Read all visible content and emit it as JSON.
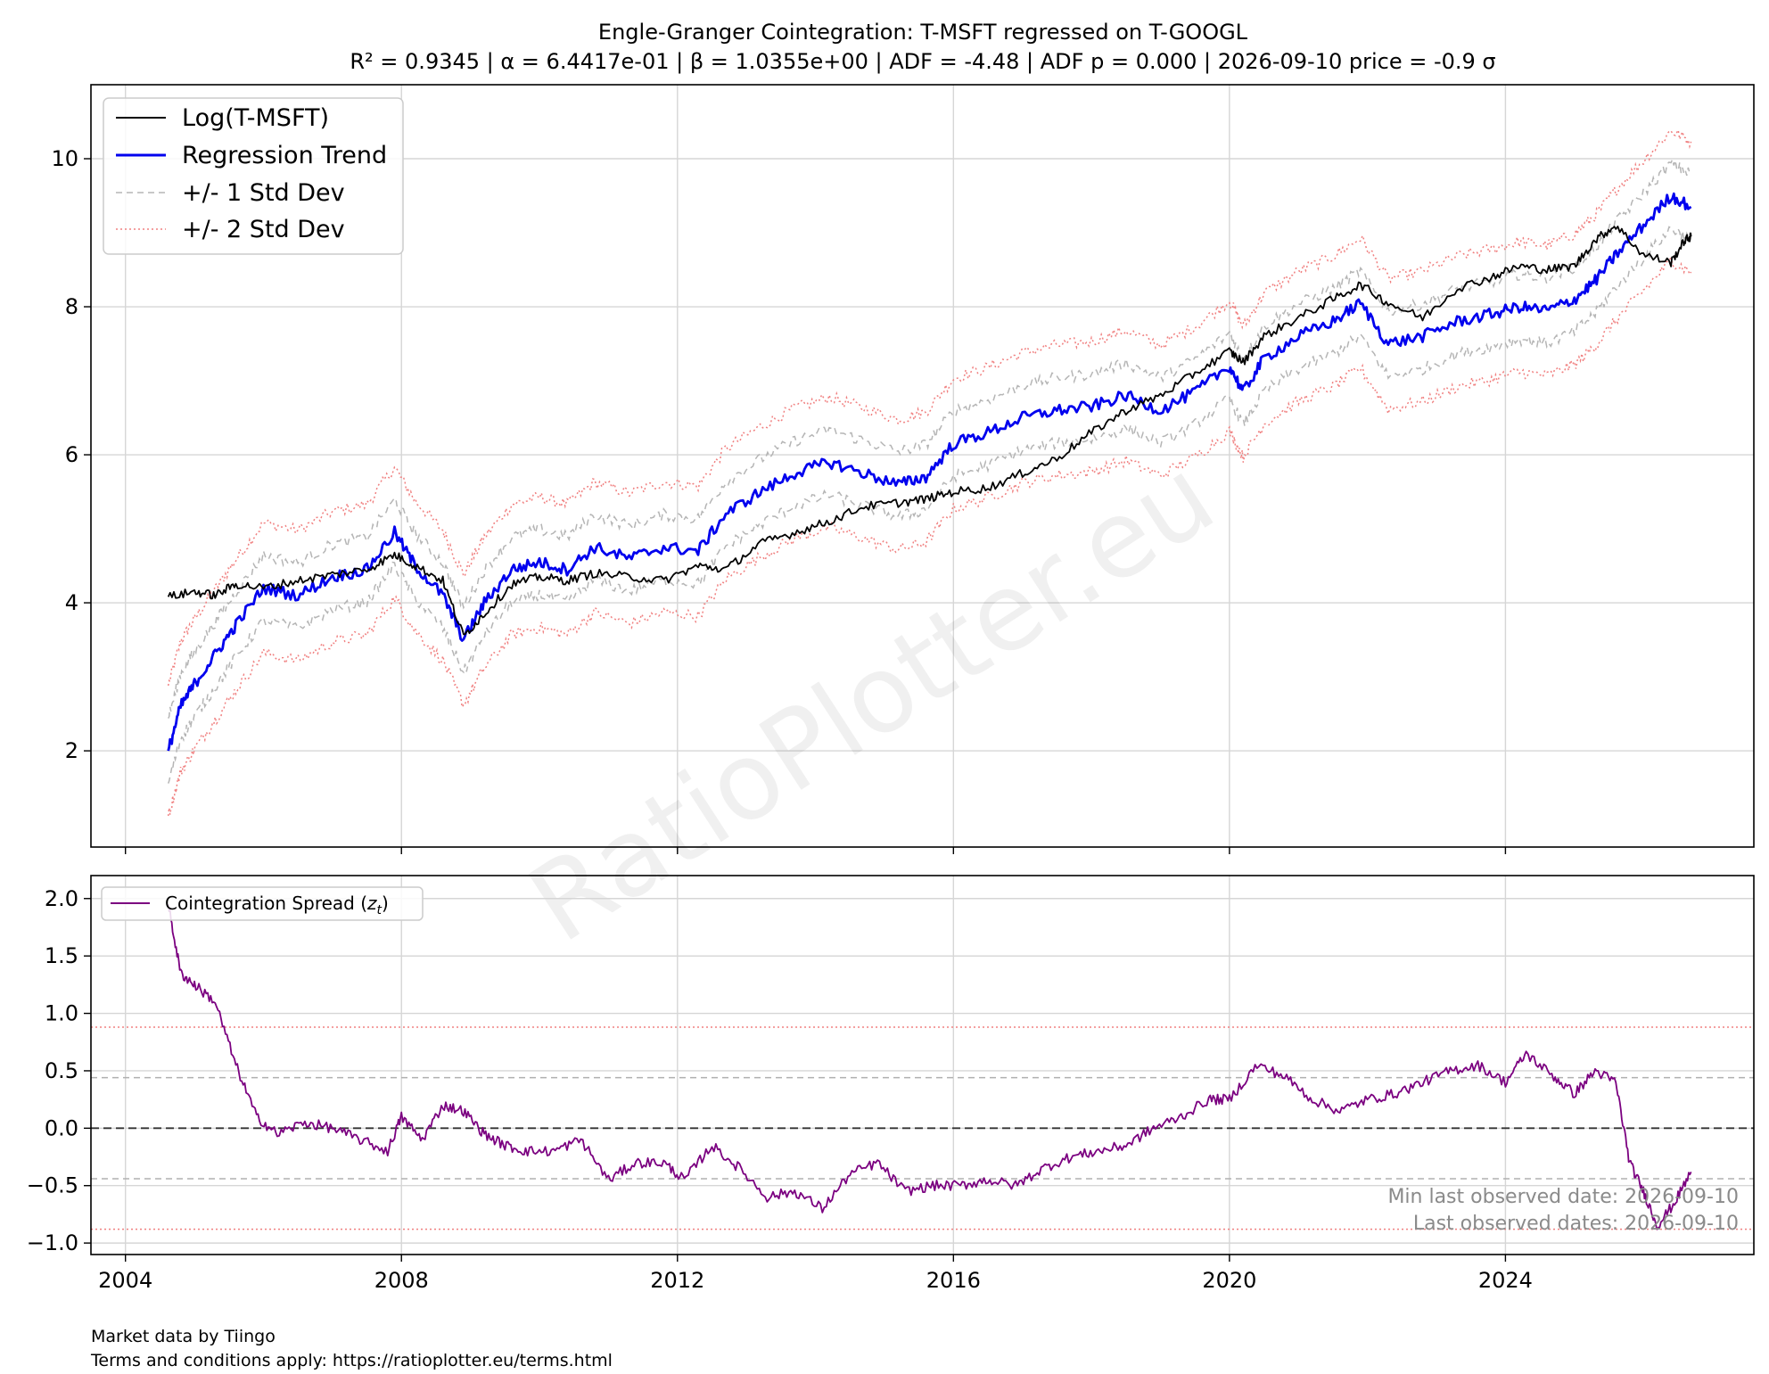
{
  "chart_data": [
    {
      "type": "line",
      "title": "Engle-Granger Cointegration: T-MSFT regressed on T-GOOGL",
      "subtitle": "R² = 0.9345 | α = 6.4417e-01 | β = 1.0355e+00 | ADF = -4.48 | ADF p = 0.000 | 2026-09-10 price = -0.9 σ",
      "xlabel": "",
      "ylabel": "",
      "xlim": [
        2003.5,
        2027.6
      ],
      "ylim": [
        0.7,
        11.0
      ],
      "x_ticks": [
        2004,
        2008,
        2012,
        2016,
        2020,
        2024
      ],
      "y_ticks": [
        2,
        4,
        6,
        8,
        10
      ],
      "y_tick_labels": [
        "2",
        "4",
        "6",
        "8",
        "10"
      ],
      "grid": true,
      "legend_position": "upper-left",
      "legend": [
        "Log(T-MSFT)",
        "Regression Trend",
        "+/- 1 Std Dev",
        "+/- 2 Std Dev"
      ],
      "band_offsets": {
        "one_sd": 0.44,
        "two_sd": 0.88
      },
      "series": [
        {
          "name": "Log(T-MSFT)",
          "color": "#000000",
          "x": [
            2004.62,
            2005.0,
            2005.3,
            2005.6,
            2006.0,
            2006.5,
            2007.0,
            2007.5,
            2007.9,
            2008.2,
            2008.6,
            2008.9,
            2009.2,
            2009.6,
            2010.0,
            2010.4,
            2010.8,
            2011.3,
            2011.8,
            2012.3,
            2012.7,
            2013.2,
            2013.7,
            2014.2,
            2014.7,
            2015.2,
            2015.6,
            2016.0,
            2016.5,
            2017.0,
            2017.5,
            2018.0,
            2018.5,
            2019.0,
            2019.5,
            2020.0,
            2020.2,
            2020.5,
            2021.0,
            2021.5,
            2021.9,
            2022.3,
            2022.8,
            2023.3,
            2023.8,
            2024.2,
            2024.6,
            2025.0,
            2025.3,
            2025.6,
            2026.0,
            2026.4,
            2026.6,
            2026.69
          ],
          "values": [
            4.08,
            4.15,
            4.1,
            4.25,
            4.2,
            4.3,
            4.38,
            4.45,
            4.65,
            4.5,
            4.3,
            3.55,
            3.85,
            4.25,
            4.35,
            4.3,
            4.4,
            4.35,
            4.3,
            4.5,
            4.45,
            4.8,
            4.95,
            5.1,
            5.3,
            5.35,
            5.4,
            5.5,
            5.55,
            5.75,
            5.95,
            6.3,
            6.6,
            6.8,
            7.1,
            7.4,
            7.25,
            7.6,
            7.85,
            8.1,
            8.3,
            8.05,
            7.85,
            8.25,
            8.4,
            8.55,
            8.5,
            8.55,
            8.9,
            9.1,
            8.7,
            8.6,
            8.9,
            8.95
          ]
        },
        {
          "name": "Regression Trend",
          "color": "#0000ee",
          "x": [
            2004.62,
            2004.8,
            2005.0,
            2005.3,
            2005.6,
            2006.0,
            2006.5,
            2007.0,
            2007.5,
            2007.9,
            2008.2,
            2008.6,
            2008.9,
            2009.2,
            2009.6,
            2010.0,
            2010.4,
            2010.8,
            2011.3,
            2011.8,
            2012.3,
            2012.7,
            2013.2,
            2013.7,
            2014.2,
            2014.7,
            2015.2,
            2015.6,
            2016.0,
            2016.5,
            2017.0,
            2017.5,
            2018.0,
            2018.5,
            2019.0,
            2019.5,
            2020.0,
            2020.2,
            2020.5,
            2021.0,
            2021.5,
            2021.9,
            2022.3,
            2022.8,
            2023.3,
            2023.8,
            2024.2,
            2024.6,
            2025.0,
            2025.3,
            2025.6,
            2026.0,
            2026.4,
            2026.69
          ],
          "values": [
            2.0,
            2.6,
            2.9,
            3.3,
            3.7,
            4.2,
            4.1,
            4.35,
            4.45,
            4.95,
            4.5,
            4.1,
            3.5,
            4.0,
            4.45,
            4.55,
            4.45,
            4.75,
            4.6,
            4.75,
            4.7,
            5.2,
            5.5,
            5.75,
            5.9,
            5.75,
            5.6,
            5.7,
            6.15,
            6.3,
            6.5,
            6.6,
            6.65,
            6.8,
            6.6,
            6.85,
            7.2,
            6.85,
            7.3,
            7.6,
            7.8,
            8.05,
            7.5,
            7.6,
            7.8,
            7.9,
            8.0,
            7.95,
            8.1,
            8.35,
            8.7,
            9.1,
            9.5,
            9.35
          ]
        }
      ]
    },
    {
      "type": "line",
      "title": "",
      "xlabel": "",
      "ylabel": "",
      "xlim": [
        2003.5,
        2027.6
      ],
      "ylim": [
        -1.1,
        2.2
      ],
      "x_ticks": [
        2004,
        2008,
        2012,
        2016,
        2020,
        2024
      ],
      "x_tick_labels": [
        "2004",
        "2008",
        "2012",
        "2016",
        "2020",
        "2024"
      ],
      "y_ticks": [
        -1.0,
        -0.5,
        0.0,
        0.5,
        1.0,
        1.5,
        2.0
      ],
      "y_tick_labels": [
        "−1.0",
        "−0.5",
        "0.0",
        "0.5",
        "1.0",
        "1.5",
        "2.0"
      ],
      "grid": true,
      "legend_position": "upper-left",
      "legend": [
        "Cointegration Spread (z_t)"
      ],
      "reference_lines": [
        {
          "y": 0.0,
          "style": "dashed",
          "color": "#333333"
        },
        {
          "y": 0.44,
          "style": "dashed",
          "color": "#b0b0b0"
        },
        {
          "y": -0.44,
          "style": "dashed",
          "color": "#b0b0b0"
        },
        {
          "y": 0.88,
          "style": "dotted",
          "color": "#f08080"
        },
        {
          "y": -0.88,
          "style": "dotted",
          "color": "#f08080"
        }
      ],
      "annotations": [
        "Min last observed date: 2026-09-10",
        "Last observed dates: 2026-09-10"
      ],
      "series": [
        {
          "name": "Cointegration Spread (z_t)",
          "color": "#7b0080",
          "x": [
            2004.62,
            2004.8,
            2005.0,
            2005.3,
            2005.6,
            2005.9,
            2006.2,
            2006.6,
            2007.0,
            2007.4,
            2007.8,
            2008.0,
            2008.3,
            2008.6,
            2008.9,
            2009.2,
            2009.5,
            2009.8,
            2010.2,
            2010.6,
            2011.0,
            2011.4,
            2011.8,
            2012.1,
            2012.5,
            2012.9,
            2013.3,
            2013.7,
            2014.1,
            2014.5,
            2014.9,
            2015.3,
            2015.7,
            2016.1,
            2016.5,
            2016.9,
            2017.3,
            2017.7,
            2018.1,
            2018.5,
            2018.9,
            2019.3,
            2019.7,
            2020.0,
            2020.4,
            2020.8,
            2021.2,
            2021.6,
            2022.0,
            2022.4,
            2022.8,
            2023.2,
            2023.6,
            2024.0,
            2024.3,
            2024.7,
            2025.0,
            2025.3,
            2025.6,
            2025.8,
            2026.0,
            2026.2,
            2026.45,
            2026.69
          ],
          "values": [
            1.95,
            1.35,
            1.25,
            1.1,
            0.55,
            0.1,
            -0.05,
            0.05,
            0.0,
            -0.1,
            -0.2,
            0.1,
            -0.1,
            0.2,
            0.15,
            -0.05,
            -0.15,
            -0.2,
            -0.2,
            -0.1,
            -0.45,
            -0.3,
            -0.3,
            -0.45,
            -0.15,
            -0.35,
            -0.6,
            -0.55,
            -0.7,
            -0.4,
            -0.3,
            -0.55,
            -0.5,
            -0.5,
            -0.45,
            -0.5,
            -0.35,
            -0.25,
            -0.2,
            -0.15,
            0.0,
            0.1,
            0.25,
            0.25,
            0.55,
            0.45,
            0.25,
            0.15,
            0.25,
            0.3,
            0.4,
            0.5,
            0.55,
            0.4,
            0.65,
            0.45,
            0.3,
            0.5,
            0.4,
            -0.3,
            -0.55,
            -0.85,
            -0.65,
            -0.38
          ]
        }
      ]
    }
  ],
  "footer": {
    "line1": "Market data by Tiingo",
    "line2": "Terms and conditions apply: https://ratioplotter.eu/terms.html"
  },
  "watermark": "RatioPlotter.eu"
}
